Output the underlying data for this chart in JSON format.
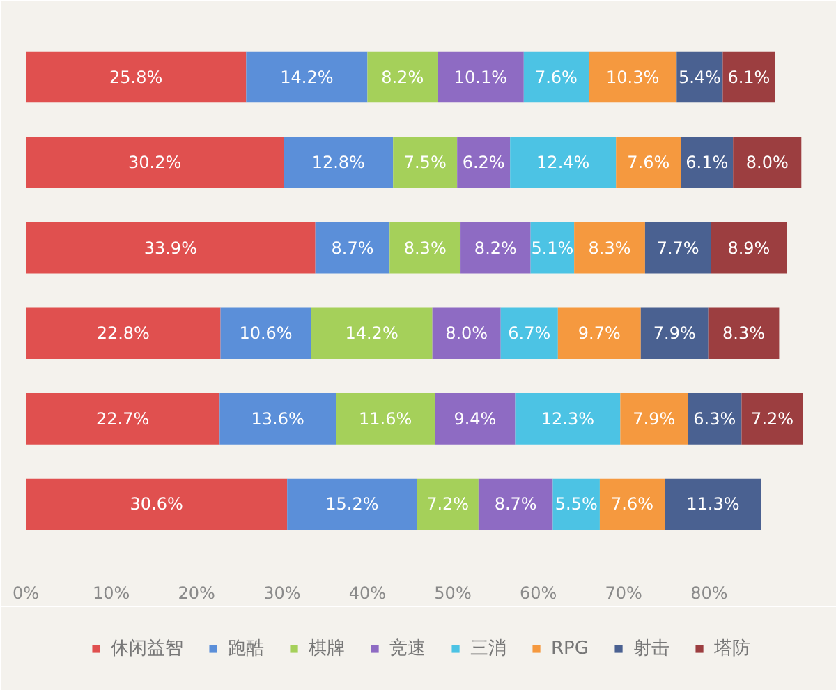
{
  "chart_data": {
    "type": "bar",
    "orientation": "horizontal",
    "stacked": true,
    "categories": [
      null,
      null,
      null,
      null,
      null,
      null
    ],
    "series": [
      {
        "name": "休闲益智",
        "color": "#e0504f",
        "values": [
          25.8,
          30.2,
          33.9,
          22.8,
          22.7,
          30.6
        ],
        "value_labels": [
          "25.8%",
          "30.2%",
          "33.9%",
          "22.8%",
          "22.7%",
          "30.6%"
        ]
      },
      {
        "name": "跑酷",
        "color": "#5b8fd9",
        "values": [
          14.2,
          12.8,
          8.7,
          10.6,
          13.6,
          15.2
        ],
        "value_labels": [
          "14.2%",
          "12.8%",
          "8.7%",
          "10.6%",
          "13.6%",
          "15.2%"
        ]
      },
      {
        "name": "棋牌",
        "color": "#a5d05a",
        "values": [
          8.2,
          7.5,
          8.3,
          14.2,
          11.6,
          7.2
        ],
        "value_labels": [
          "8.2%",
          "7.5%",
          "8.3%",
          "14.2%",
          "11.6%",
          "7.2%"
        ]
      },
      {
        "name": "竞速",
        "color": "#8e6bc3",
        "values": [
          10.1,
          6.2,
          8.2,
          8.0,
          9.4,
          8.7
        ],
        "value_labels": [
          "10.1%",
          "6.2%",
          "8.2%",
          "8.0%",
          "9.4%",
          "8.7%"
        ]
      },
      {
        "name": "三消",
        "color": "#4cc3e4",
        "values": [
          7.6,
          12.4,
          5.1,
          6.7,
          12.3,
          5.5
        ],
        "value_labels": [
          "7.6%",
          "12.4%",
          "5.1%",
          "6.7%",
          "12.3%",
          "5.5%"
        ]
      },
      {
        "name": "RPG",
        "color": "#f5993f",
        "values": [
          10.3,
          7.6,
          8.3,
          9.7,
          7.9,
          7.6
        ],
        "value_labels": [
          "10.3%",
          "7.6%",
          "8.3%",
          "9.7%",
          "7.9%",
          "7.6%"
        ]
      },
      {
        "name": "射击",
        "color": "#4a6191",
        "values": [
          5.4,
          6.1,
          7.7,
          7.9,
          6.3,
          11.3
        ],
        "value_labels": [
          "5.4%",
          "6.1%",
          "7.7%",
          "7.9%",
          "6.3%",
          "11.3%"
        ]
      },
      {
        "name": "塔防",
        "color": "#9c3e40",
        "values": [
          6.1,
          8.0,
          8.9,
          8.3,
          7.2,
          null
        ],
        "value_labels": [
          "6.1%",
          "8.0%",
          "8.9%",
          "8.3%",
          "7.2%",
          null
        ]
      }
    ],
    "xlim": [
      0,
      92
    ],
    "xticks": [
      {
        "value": 0,
        "label": "0%"
      },
      {
        "value": 10,
        "label": "10%"
      },
      {
        "value": 20,
        "label": "20%"
      },
      {
        "value": 30,
        "label": "30%"
      },
      {
        "value": 40,
        "label": "40%"
      },
      {
        "value": 50,
        "label": "50%"
      },
      {
        "value": 60,
        "label": "60%"
      },
      {
        "value": 70,
        "label": "70%"
      },
      {
        "value": 80,
        "label": "80%"
      }
    ],
    "tick_labels": "x",
    "legend": "bottom"
  }
}
